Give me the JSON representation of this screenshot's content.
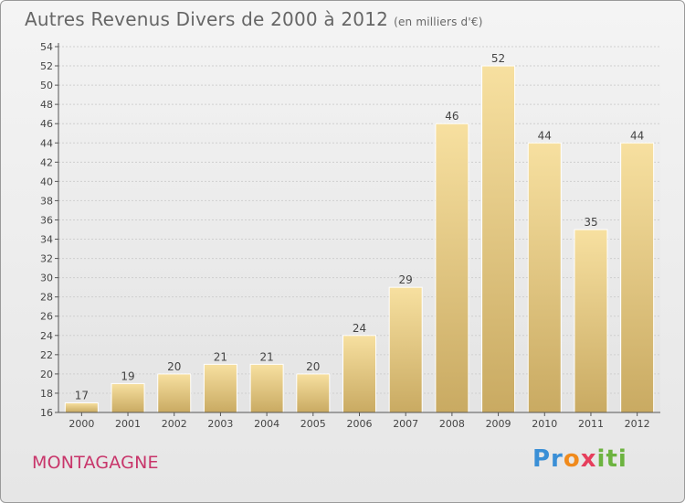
{
  "header": {
    "title": "Autres Revenus Divers de 2000 à 2012",
    "unit": "(en milliers d'€)"
  },
  "footer": {
    "town": "MONTAGAGNE",
    "logo_text": "Proxiti"
  },
  "colors": {
    "bar_light": "#f7e0a0",
    "bar_dark": "#c9aa62",
    "town": "#c8356a",
    "grid": "#cfcfcf",
    "text": "#555555"
  },
  "chart_data": {
    "type": "bar",
    "title": "Autres Revenus Divers de 2000 à 2012",
    "subtitle": "(en milliers d'€)",
    "xlabel": "",
    "ylabel": "",
    "categories": [
      "2000",
      "2001",
      "2002",
      "2003",
      "2004",
      "2005",
      "2006",
      "2007",
      "2008",
      "2009",
      "2010",
      "2011",
      "2012"
    ],
    "values": [
      17,
      19,
      20,
      21,
      21,
      20,
      24,
      29,
      46,
      52,
      44,
      35,
      44
    ],
    "ylim": [
      16,
      54
    ],
    "yticks": [
      16,
      18,
      20,
      22,
      24,
      26,
      28,
      30,
      32,
      34,
      36,
      38,
      40,
      42,
      44,
      46,
      48,
      50,
      52,
      54
    ],
    "grid": true,
    "data_labels": true
  }
}
